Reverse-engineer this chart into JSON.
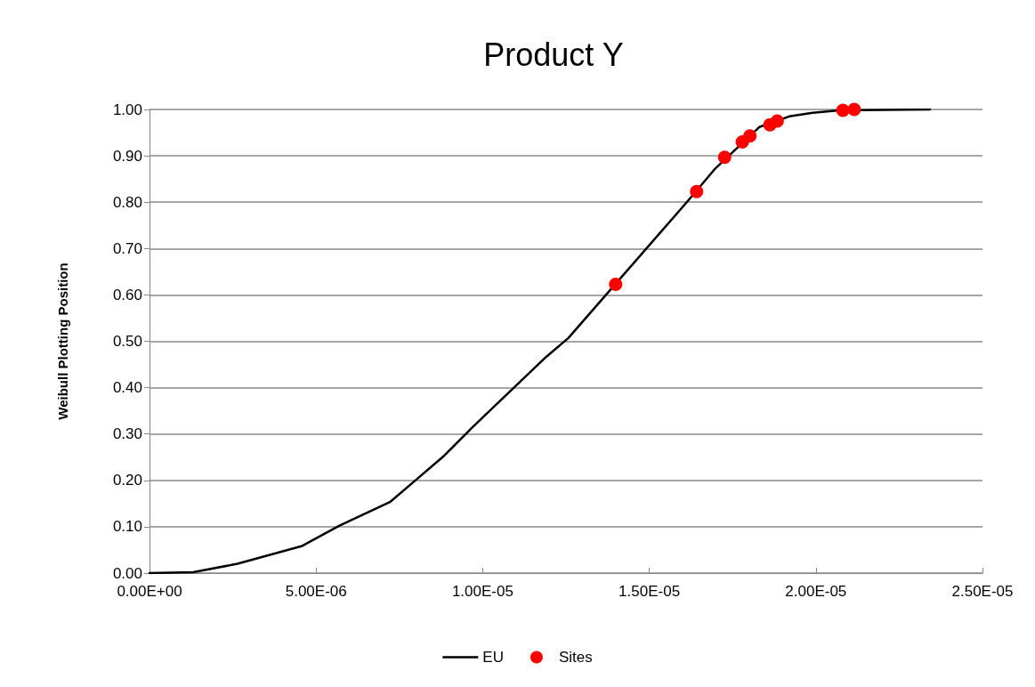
{
  "chart_data": {
    "type": "scatter",
    "title": "Product Y",
    "ylabel": "Weibull Plotting Position",
    "xlim": [
      0,
      2.5e-05
    ],
    "xticks": [
      {
        "value": 0,
        "label": "0.00E+00"
      },
      {
        "value": 5e-06,
        "label": "5.00E-06"
      },
      {
        "value": 1e-05,
        "label": "1.00E-05"
      },
      {
        "value": 1.5e-05,
        "label": "1.50E-05"
      },
      {
        "value": 2e-05,
        "label": "2.00E-05"
      },
      {
        "value": 2.5e-05,
        "label": "2.50E-05"
      }
    ],
    "ylim": [
      0,
      1
    ],
    "yticks": [
      {
        "value": 0,
        "label": "0.00"
      },
      {
        "value": 0.1,
        "label": "0.10"
      },
      {
        "value": 0.2,
        "label": "0.20"
      },
      {
        "value": 0.3,
        "label": "0.30"
      },
      {
        "value": 0.4,
        "label": "0.40"
      },
      {
        "value": 0.5,
        "label": "0.50"
      },
      {
        "value": 0.6,
        "label": "0.60"
      },
      {
        "value": 0.7,
        "label": "0.70"
      },
      {
        "value": 0.8,
        "label": "0.80"
      },
      {
        "value": 0.9,
        "label": "0.90"
      },
      {
        "value": 1,
        "label": "1.00"
      }
    ],
    "grid": "y",
    "legend": "bottom",
    "series": [
      {
        "name": "EU",
        "type": "line",
        "color": "#000000",
        "marker": "none",
        "line_style": "solid",
        "x": [
          0,
          1.31e-06,
          2.64e-06,
          4.56e-06,
          5.69e-06,
          7.23e-06,
          7.9e-06,
          8.84e-06,
          9.7e-06,
          1.095e-05,
          1.19e-05,
          1.257e-05,
          1.621e-05,
          1.696e-05,
          1.83e-05,
          1.92e-05,
          1.99e-05,
          2.07e-05,
          2.342e-05
        ],
        "values": [
          0,
          0.002,
          0.02,
          0.058,
          0.102,
          0.154,
          0.195,
          0.253,
          0.315,
          0.401,
          0.466,
          0.507,
          0.807,
          0.871,
          0.962,
          0.985,
          0.993,
          0.998,
          1
        ]
      },
      {
        "name": "Sites",
        "type": "scatter",
        "color": "#ff0000",
        "marker": "circle",
        "x": [
          1.399e-05,
          1.642e-05,
          1.726e-05,
          1.779e-05,
          1.802e-05,
          1.862e-05,
          1.884e-05,
          2.081e-05,
          2.115e-05
        ],
        "values": [
          0.623,
          0.823,
          0.897,
          0.93,
          0.943,
          0.967,
          0.975,
          0.998,
          1
        ]
      }
    ]
  }
}
